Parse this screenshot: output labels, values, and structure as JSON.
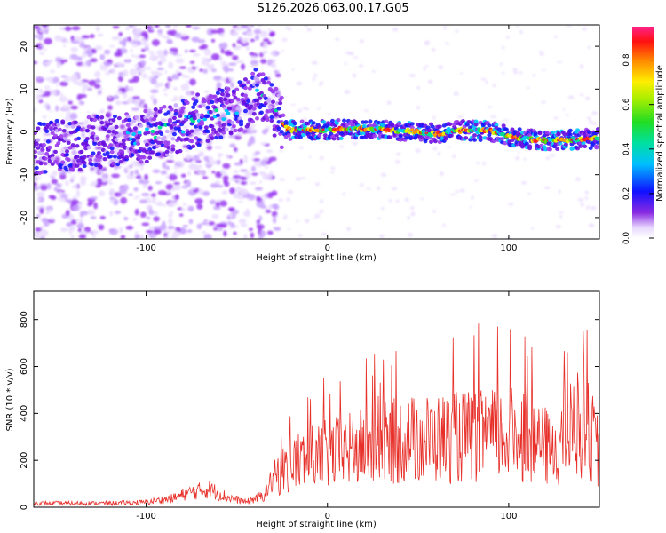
{
  "title": "S126.2026.063.00.17.G05",
  "chart_data": [
    {
      "type": "heatmap",
      "xlabel": "Height of straight line (km)",
      "ylabel": "Frequency (Hz)",
      "xlim": [
        -162,
        150
      ],
      "ylim": [
        -25,
        25
      ],
      "xticks": [
        -100,
        0,
        100
      ],
      "yticks": [
        -20,
        -10,
        0,
        10,
        20
      ],
      "colorbar": {
        "label": "Normalized spectral amplitude",
        "range": [
          0,
          0.95
        ],
        "ticks": [
          0.0,
          0.2,
          0.4,
          0.6,
          0.8
        ]
      },
      "ridge": [
        {
          "x": -162,
          "y": -4
        },
        {
          "x": -140,
          "y": -3
        },
        {
          "x": -120,
          "y": -2
        },
        {
          "x": -100,
          "y": -1
        },
        {
          "x": -85,
          "y": 1
        },
        {
          "x": -70,
          "y": 3
        },
        {
          "x": -55,
          "y": 5
        },
        {
          "x": -45,
          "y": 7
        },
        {
          "x": -38,
          "y": 9
        },
        {
          "x": -32,
          "y": 6
        },
        {
          "x": -28,
          "y": 4
        },
        {
          "x": -22,
          "y": 0.5
        },
        {
          "x": 0,
          "y": 0.5
        },
        {
          "x": 20,
          "y": 0.8
        },
        {
          "x": 40,
          "y": 0.3
        },
        {
          "x": 60,
          "y": -0.5
        },
        {
          "x": 75,
          "y": 0.4
        },
        {
          "x": 90,
          "y": 0.2
        },
        {
          "x": 105,
          "y": -1.5
        },
        {
          "x": 120,
          "y": -2
        },
        {
          "x": 135,
          "y": -1.8
        },
        {
          "x": 150,
          "y": -1.5
        }
      ]
    },
    {
      "type": "line",
      "xlabel": "Height of straight line (km)",
      "ylabel": "SNR (10 * v/v)",
      "xlim": [
        -162,
        150
      ],
      "ylim": [
        0,
        920
      ],
      "xticks": [
        -100,
        0,
        100
      ],
      "yticks": [
        0,
        200,
        400,
        600,
        800
      ],
      "color": "#e8302a",
      "envelope": [
        {
          "x": -162,
          "y": 20
        },
        {
          "x": -120,
          "y": 20
        },
        {
          "x": -100,
          "y": 25
        },
        {
          "x": -85,
          "y": 45
        },
        {
          "x": -75,
          "y": 75
        },
        {
          "x": -65,
          "y": 90
        },
        {
          "x": -55,
          "y": 50
        },
        {
          "x": -45,
          "y": 25
        },
        {
          "x": -35,
          "y": 60
        },
        {
          "x": -28,
          "y": 180
        },
        {
          "x": -20,
          "y": 250
        },
        {
          "x": -10,
          "y": 280
        },
        {
          "x": 0,
          "y": 300
        },
        {
          "x": 20,
          "y": 340
        },
        {
          "x": 40,
          "y": 380
        },
        {
          "x": 60,
          "y": 390
        },
        {
          "x": 80,
          "y": 400
        },
        {
          "x": 100,
          "y": 410
        },
        {
          "x": 110,
          "y": 420
        },
        {
          "x": 115,
          "y": 360
        },
        {
          "x": 125,
          "y": 330
        },
        {
          "x": 135,
          "y": 450
        },
        {
          "x": 142,
          "y": 500
        },
        {
          "x": 150,
          "y": 300
        }
      ]
    }
  ]
}
